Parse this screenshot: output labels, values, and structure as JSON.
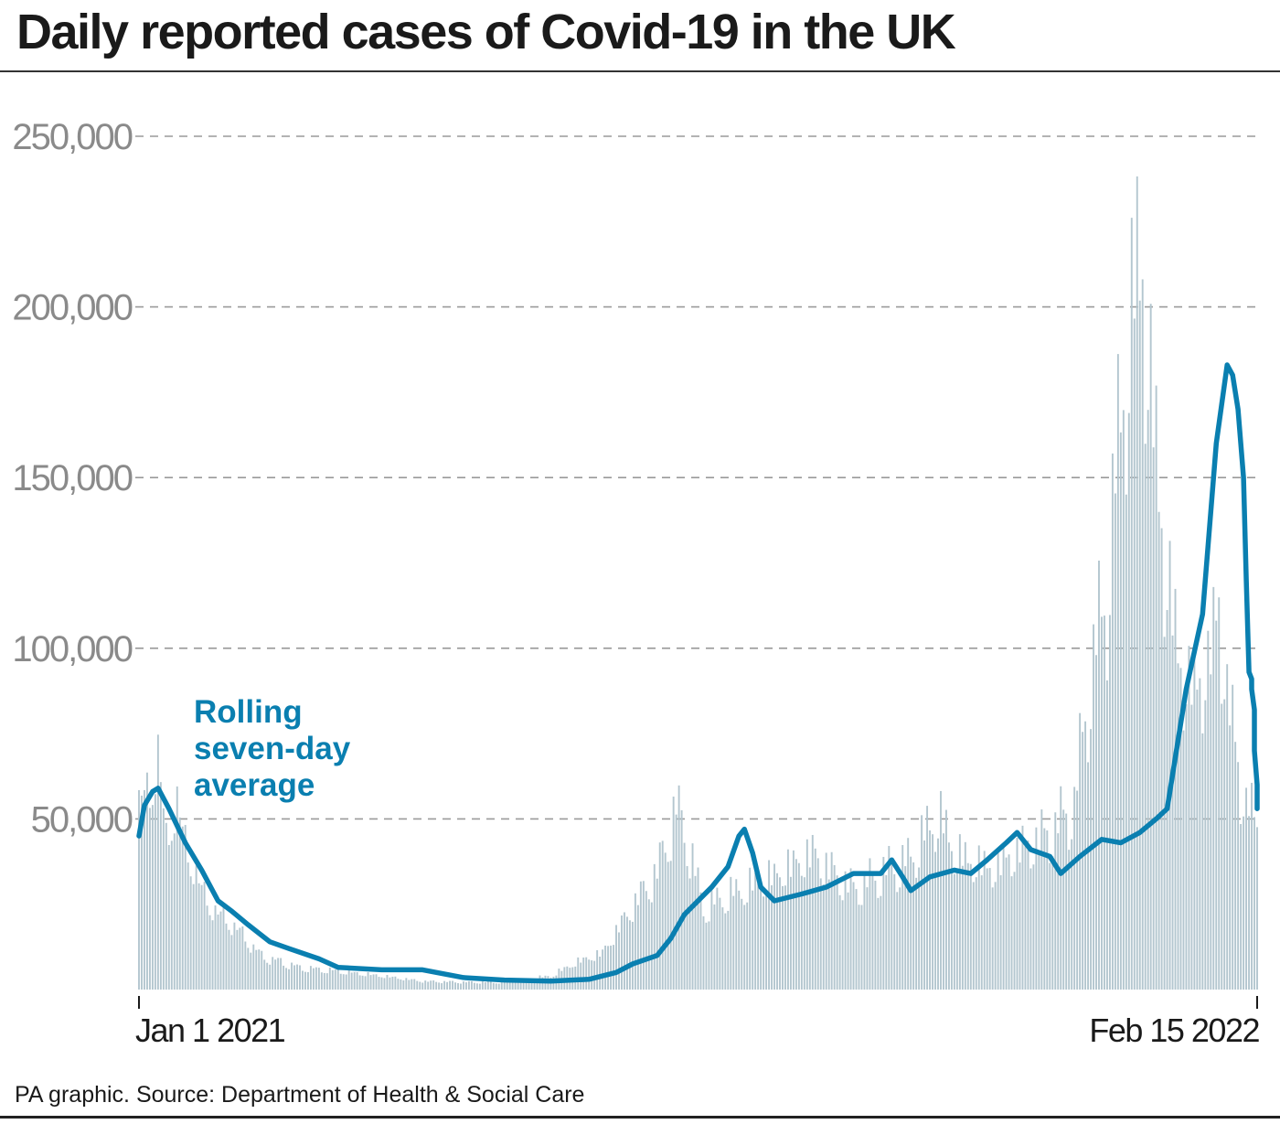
{
  "title": "Daily reported cases of Covid-19 in the UK",
  "source": "PA graphic. Source: Department of Health & Social Care",
  "colors": {
    "bars": "#b3c6cf",
    "line": "#0a7fb0",
    "grid": "#9a9a9a",
    "text": "#1a1a1a",
    "tick_text": "#8a8a8a"
  },
  "chart_data": {
    "type": "bar",
    "overlay": "line",
    "x_start": "2021-01-01",
    "x_end": "2022-02-15",
    "xticks": [
      "Jan 1 2021",
      "Feb 15 2022"
    ],
    "yticks": [
      "50,000",
      "100,000",
      "150,000",
      "200,000",
      "250,000"
    ],
    "ylim": [
      0,
      250000
    ],
    "grid": "horizontal dashed",
    "annotation": [
      "Rolling",
      "seven-day",
      "average"
    ],
    "series": [
      {
        "kind": "bar",
        "keypoints": [
          [
            "2021-01-01",
            53000
          ],
          [
            "2021-01-04",
            60000
          ],
          [
            "2021-01-08",
            68000
          ],
          [
            "2021-01-11",
            46000
          ],
          [
            "2021-01-15",
            55000
          ],
          [
            "2021-01-20",
            38000
          ],
          [
            "2021-01-27",
            25000
          ],
          [
            "2021-02-05",
            19000
          ],
          [
            "2021-02-15",
            10000
          ],
          [
            "2021-03-01",
            6500
          ],
          [
            "2021-03-15",
            5500
          ],
          [
            "2021-04-01",
            4000
          ],
          [
            "2021-04-15",
            2500
          ],
          [
            "2021-05-01",
            2200
          ],
          [
            "2021-05-15",
            2200
          ],
          [
            "2021-06-01",
            4000
          ],
          [
            "2021-06-10",
            8000
          ],
          [
            "2021-06-20",
            11000
          ],
          [
            "2021-07-01",
            25000
          ],
          [
            "2021-07-10",
            35000
          ],
          [
            "2021-07-17",
            54000
          ],
          [
            "2021-07-21",
            45000
          ],
          [
            "2021-07-27",
            24000
          ],
          [
            "2021-08-05",
            28000
          ],
          [
            "2021-08-20",
            33000
          ],
          [
            "2021-09-05",
            41000
          ],
          [
            "2021-09-10",
            37000
          ],
          [
            "2021-09-20",
            30000
          ],
          [
            "2021-10-01",
            35000
          ],
          [
            "2021-10-10",
            38000
          ],
          [
            "2021-10-21",
            52000
          ],
          [
            "2021-10-28",
            40000
          ],
          [
            "2021-11-10",
            36000
          ],
          [
            "2021-11-20",
            42000
          ],
          [
            "2021-12-01",
            47000
          ],
          [
            "2021-12-10",
            55000
          ],
          [
            "2021-12-15",
            88000
          ],
          [
            "2021-12-22",
            120000
          ],
          [
            "2021-12-29",
            190000
          ],
          [
            "2022-01-04",
            219000
          ],
          [
            "2022-01-07",
            178000
          ],
          [
            "2022-01-12",
            130000
          ],
          [
            "2022-01-18",
            95000
          ],
          [
            "2022-01-25",
            90000
          ],
          [
            "2022-02-01",
            112000
          ],
          [
            "2022-02-08",
            65000
          ],
          [
            "2022-02-15",
            47000
          ]
        ]
      },
      {
        "kind": "line",
        "keypoints": [
          [
            "2021-01-01",
            45000
          ],
          [
            "2021-01-03",
            54000
          ],
          [
            "2021-01-06",
            58000
          ],
          [
            "2021-01-08",
            59000
          ],
          [
            "2021-01-12",
            53000
          ],
          [
            "2021-01-18",
            43000
          ],
          [
            "2021-01-24",
            35000
          ],
          [
            "2021-01-30",
            26000
          ],
          [
            "2021-02-04",
            23000
          ],
          [
            "2021-02-10",
            19000
          ],
          [
            "2021-02-18",
            14000
          ],
          [
            "2021-02-25",
            12000
          ],
          [
            "2021-03-08",
            9000
          ],
          [
            "2021-03-15",
            6500
          ],
          [
            "2021-03-31",
            5800
          ],
          [
            "2021-04-15",
            5800
          ],
          [
            "2021-04-30",
            3500
          ],
          [
            "2021-05-15",
            2800
          ],
          [
            "2021-06-01",
            2500
          ],
          [
            "2021-06-15",
            3000
          ],
          [
            "2021-06-25",
            5000
          ],
          [
            "2021-07-01",
            7500
          ],
          [
            "2021-07-10",
            10000
          ],
          [
            "2021-07-15",
            15000
          ],
          [
            "2021-07-20",
            22000
          ],
          [
            "2021-07-30",
            30000
          ],
          [
            "2021-08-05",
            36000
          ],
          [
            "2021-08-09",
            45000
          ],
          [
            "2021-08-11",
            47000
          ],
          [
            "2021-08-14",
            40000
          ],
          [
            "2021-08-17",
            30000
          ],
          [
            "2021-08-22",
            26000
          ],
          [
            "2021-09-01",
            28000
          ],
          [
            "2021-09-10",
            30000
          ],
          [
            "2021-09-20",
            34000
          ],
          [
            "2021-09-30",
            34000
          ],
          [
            "2021-10-04",
            38000
          ],
          [
            "2021-10-08",
            33000
          ],
          [
            "2021-10-11",
            29000
          ],
          [
            "2021-10-18",
            33000
          ],
          [
            "2021-10-27",
            35000
          ],
          [
            "2021-11-02",
            34000
          ],
          [
            "2021-11-08",
            38000
          ],
          [
            "2021-11-15",
            43000
          ],
          [
            "2021-11-19",
            46000
          ],
          [
            "2021-11-24",
            41000
          ],
          [
            "2021-12-01",
            39000
          ],
          [
            "2021-12-05",
            34000
          ],
          [
            "2021-12-12",
            39000
          ],
          [
            "2021-12-20",
            44000
          ],
          [
            "2021-12-27",
            43000
          ],
          [
            "2022-01-03",
            46000
          ],
          [
            "2022-01-09",
            50000
          ],
          [
            "2022-01-13",
            53000
          ],
          [
            "2022-01-20",
            88000
          ],
          [
            "2022-01-26",
            110000
          ],
          [
            "2022-01-31",
            160000
          ],
          [
            "2022-02-04",
            183000
          ],
          [
            "2022-02-06",
            180000
          ],
          [
            "2022-02-08",
            170000
          ],
          [
            "2022-02-10",
            150000
          ],
          [
            "2022-02-11",
            120000
          ],
          [
            "2022-02-12",
            93000
          ],
          [
            "2022-02-13",
            91000
          ],
          [
            "2022-02-13",
            88000
          ],
          [
            "2022-02-14",
            82000
          ],
          [
            "2022-02-14",
            70000
          ],
          [
            "2022-02-15",
            60000
          ],
          [
            "2022-02-15",
            53000
          ]
        ]
      }
    ]
  }
}
